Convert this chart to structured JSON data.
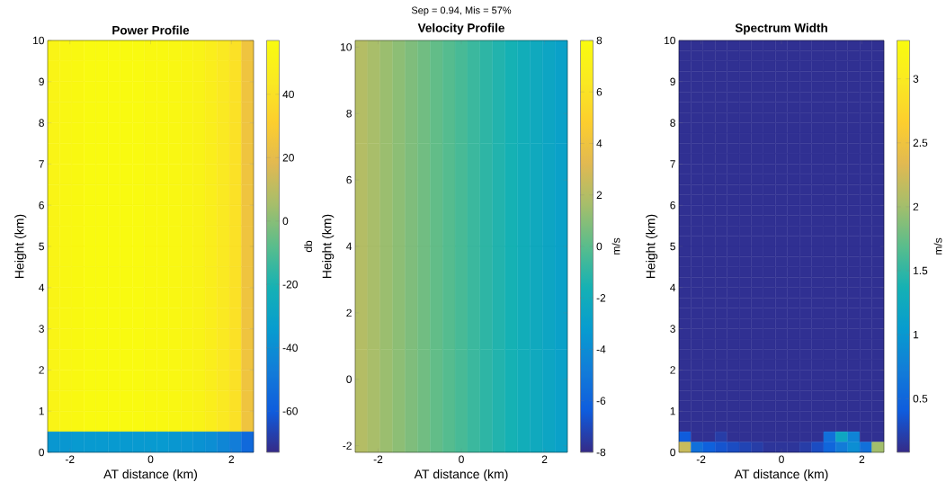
{
  "chart_data": [
    {
      "type": "heatmap",
      "title": "Power Profile",
      "xlabel": "AT distance (km)",
      "ylabel": "Height (km)",
      "clabel": "db",
      "x": [
        -2.4,
        -2.1,
        -1.8,
        -1.5,
        -1.2,
        -0.9,
        -0.6,
        -0.3,
        0,
        0.3,
        0.6,
        0.9,
        1.2,
        1.5,
        1.8,
        2.1,
        2.4
      ],
      "y": [
        9.75,
        9.25,
        8.75,
        8.25,
        7.75,
        7.25,
        6.75,
        6.25,
        5.75,
        5.25,
        4.75,
        4.25,
        3.75,
        3.25,
        2.75,
        2.25,
        1.75,
        1.25,
        0.75,
        0.25
      ],
      "cells": [
        [
          52,
          54,
          55,
          56,
          56,
          56,
          56,
          56,
          55,
          55,
          54,
          53,
          51,
          48,
          44,
          40,
          25
        ],
        [
          52,
          54,
          55,
          56,
          56,
          56,
          56,
          56,
          55,
          55,
          54,
          53,
          51,
          48,
          44,
          40,
          25
        ],
        [
          52,
          54,
          55,
          56,
          56,
          56,
          56,
          56,
          55,
          55,
          54,
          53,
          51,
          48,
          44,
          40,
          25
        ],
        [
          52,
          54,
          55,
          56,
          56,
          56,
          56,
          56,
          55,
          55,
          54,
          53,
          51,
          48,
          44,
          40,
          25
        ],
        [
          52,
          54,
          55,
          56,
          56,
          56,
          56,
          56,
          55,
          55,
          54,
          53,
          51,
          48,
          44,
          40,
          25
        ],
        [
          52,
          54,
          55,
          56,
          56,
          56,
          56,
          56,
          55,
          55,
          54,
          53,
          51,
          48,
          44,
          40,
          25
        ],
        [
          52,
          54,
          55,
          56,
          56,
          56,
          56,
          56,
          55,
          55,
          54,
          53,
          51,
          48,
          44,
          40,
          25
        ],
        [
          52,
          54,
          55,
          56,
          56,
          56,
          56,
          56,
          55,
          55,
          54,
          53,
          51,
          48,
          44,
          40,
          25
        ],
        [
          52,
          54,
          55,
          56,
          56,
          56,
          56,
          56,
          55,
          55,
          54,
          53,
          51,
          48,
          44,
          40,
          25
        ],
        [
          52,
          54,
          55,
          56,
          56,
          56,
          56,
          56,
          55,
          55,
          54,
          53,
          51,
          48,
          44,
          40,
          25
        ],
        [
          52,
          54,
          55,
          56,
          56,
          56,
          56,
          56,
          55,
          55,
          54,
          53,
          51,
          48,
          44,
          40,
          25
        ],
        [
          52,
          54,
          55,
          56,
          56,
          56,
          56,
          56,
          55,
          55,
          54,
          53,
          51,
          48,
          44,
          40,
          25
        ],
        [
          52,
          54,
          55,
          56,
          56,
          56,
          56,
          56,
          55,
          55,
          54,
          53,
          51,
          48,
          44,
          40,
          25
        ],
        [
          52,
          54,
          55,
          56,
          56,
          56,
          56,
          56,
          55,
          55,
          54,
          53,
          51,
          48,
          44,
          40,
          25
        ],
        [
          52,
          54,
          55,
          56,
          56,
          56,
          56,
          56,
          55,
          55,
          54,
          53,
          51,
          48,
          44,
          40,
          25
        ],
        [
          52,
          54,
          55,
          56,
          56,
          56,
          56,
          56,
          55,
          55,
          54,
          53,
          51,
          48,
          44,
          40,
          25
        ],
        [
          52,
          54,
          55,
          56,
          56,
          56,
          56,
          56,
          55,
          55,
          54,
          53,
          51,
          48,
          44,
          40,
          25
        ],
        [
          52,
          54,
          55,
          56,
          56,
          56,
          56,
          56,
          55,
          55,
          54,
          53,
          51,
          48,
          44,
          40,
          25
        ],
        [
          52,
          54,
          55,
          56,
          56,
          56,
          56,
          56,
          55,
          55,
          54,
          53,
          51,
          48,
          44,
          40,
          25
        ],
        [
          -36,
          -36,
          -35,
          -35,
          -35,
          -35,
          -35,
          -35,
          -35,
          -35,
          -36,
          -37,
          -38,
          -40,
          -43,
          -47,
          -55
        ]
      ],
      "xlim": [
        -2.55,
        2.55
      ],
      "ylim": [
        0,
        10
      ],
      "xticks": [
        -2,
        0,
        2
      ],
      "yticks": [
        0,
        1,
        2,
        3,
        4,
        5,
        6,
        7,
        8,
        9,
        10
      ],
      "clim": [
        -73,
        57
      ],
      "cticks": [
        -60,
        -40,
        -20,
        0,
        20,
        40
      ]
    },
    {
      "type": "heatmap",
      "title": "Velocity Profile",
      "xlabel": "AT distance (km)",
      "ylabel": "Height (km)",
      "clabel": "m/s",
      "annotations": [
        "Sep = 0.94, Mis = 57%"
      ],
      "x": [
        -2.4,
        -2.1,
        -1.8,
        -1.5,
        -1.2,
        -0.9,
        -0.6,
        -0.3,
        0,
        0.3,
        0.6,
        0.9,
        1.2,
        1.5,
        1.8,
        2.1,
        2.4
      ],
      "y": [
        8.65,
        5.55,
        2.45,
        -0.65
      ],
      "cells": [
        [
          2.0,
          1.7,
          1.4,
          1.1,
          0.8,
          0.5,
          0.2,
          -0.1,
          -0.4,
          -0.7,
          -1.0,
          -1.3,
          -1.6,
          -1.9,
          -2.2,
          -2.5,
          -2.8
        ],
        [
          2.0,
          1.7,
          1.4,
          1.1,
          0.8,
          0.5,
          0.2,
          -0.1,
          -0.4,
          -0.7,
          -1.0,
          -1.3,
          -1.6,
          -1.9,
          -2.2,
          -2.5,
          -2.8
        ],
        [
          2.0,
          1.7,
          1.4,
          1.1,
          0.8,
          0.5,
          0.2,
          -0.1,
          -0.4,
          -0.7,
          -1.0,
          -1.3,
          -1.6,
          -1.9,
          -2.2,
          -2.5,
          -2.8
        ],
        [
          2.0,
          1.7,
          1.4,
          1.1,
          0.8,
          0.5,
          0.2,
          -0.1,
          -0.4,
          -0.7,
          -1.0,
          -1.3,
          -1.6,
          -1.9,
          -2.2,
          -2.5,
          -2.8
        ]
      ],
      "xlim": [
        -2.55,
        2.55
      ],
      "ylim": [
        -2.2,
        10.2
      ],
      "xticks": [
        -2,
        0,
        2
      ],
      "yticks": [
        -2,
        0,
        2,
        4,
        6,
        8,
        10
      ],
      "clim": [
        -8,
        8
      ],
      "cticks": [
        -8,
        -6,
        -4,
        -2,
        0,
        2,
        4,
        6,
        8
      ]
    },
    {
      "type": "heatmap",
      "title": "Spectrum Width",
      "xlabel": "AT distance (km)",
      "ylabel": "Height (km)",
      "clabel": "m/s",
      "x": [
        -2.4,
        -2.1,
        -1.8,
        -1.5,
        -1.2,
        -0.9,
        -0.6,
        -0.3,
        0,
        0.3,
        0.6,
        0.9,
        1.2,
        1.5,
        1.8,
        2.1,
        2.4
      ],
      "y": [
        9.875,
        9.625,
        9.375,
        9.125,
        8.875,
        8.625,
        8.375,
        8.125,
        7.875,
        7.625,
        7.375,
        7.125,
        6.875,
        6.625,
        6.375,
        6.125,
        5.875,
        5.625,
        5.375,
        5.125,
        4.875,
        4.625,
        4.375,
        4.125,
        3.875,
        3.625,
        3.375,
        3.125,
        2.875,
        2.625,
        2.375,
        2.125,
        1.875,
        1.625,
        1.375,
        1.125,
        0.875,
        0.625,
        0.375,
        0.125
      ],
      "cells": [
        [
          0.12,
          0.12,
          0.12,
          0.12,
          0.12,
          0.12,
          0.12,
          0.12,
          0.12,
          0.12,
          0.12,
          0.12,
          0.12,
          0.12,
          0.12,
          0.12,
          0.12
        ],
        [
          0.12,
          0.12,
          0.12,
          0.12,
          0.12,
          0.12,
          0.12,
          0.12,
          0.12,
          0.12,
          0.12,
          0.12,
          0.12,
          0.12,
          0.12,
          0.12,
          0.12
        ],
        [
          0.12,
          0.12,
          0.12,
          0.12,
          0.12,
          0.12,
          0.12,
          0.12,
          0.12,
          0.12,
          0.12,
          0.12,
          0.12,
          0.12,
          0.12,
          0.12,
          0.12
        ],
        [
          0.12,
          0.12,
          0.12,
          0.12,
          0.12,
          0.12,
          0.12,
          0.12,
          0.12,
          0.12,
          0.12,
          0.12,
          0.12,
          0.12,
          0.12,
          0.12,
          0.12
        ],
        [
          0.12,
          0.12,
          0.12,
          0.12,
          0.12,
          0.12,
          0.12,
          0.12,
          0.12,
          0.12,
          0.12,
          0.12,
          0.12,
          0.12,
          0.12,
          0.12,
          0.12
        ],
        [
          0.12,
          0.12,
          0.12,
          0.12,
          0.12,
          0.12,
          0.12,
          0.12,
          0.12,
          0.12,
          0.12,
          0.12,
          0.12,
          0.12,
          0.12,
          0.12,
          0.12
        ],
        [
          0.12,
          0.12,
          0.12,
          0.12,
          0.12,
          0.12,
          0.12,
          0.12,
          0.12,
          0.12,
          0.12,
          0.12,
          0.12,
          0.12,
          0.12,
          0.12,
          0.12
        ],
        [
          0.12,
          0.12,
          0.12,
          0.12,
          0.12,
          0.12,
          0.12,
          0.12,
          0.12,
          0.12,
          0.12,
          0.12,
          0.12,
          0.12,
          0.12,
          0.12,
          0.12
        ],
        [
          0.12,
          0.12,
          0.12,
          0.12,
          0.12,
          0.12,
          0.12,
          0.12,
          0.12,
          0.12,
          0.12,
          0.12,
          0.12,
          0.12,
          0.12,
          0.12,
          0.12
        ],
        [
          0.12,
          0.12,
          0.12,
          0.12,
          0.12,
          0.12,
          0.12,
          0.12,
          0.12,
          0.12,
          0.12,
          0.12,
          0.12,
          0.12,
          0.12,
          0.12,
          0.12
        ],
        [
          0.12,
          0.12,
          0.12,
          0.12,
          0.12,
          0.12,
          0.12,
          0.12,
          0.12,
          0.12,
          0.12,
          0.12,
          0.12,
          0.12,
          0.12,
          0.12,
          0.12
        ],
        [
          0.12,
          0.12,
          0.12,
          0.12,
          0.12,
          0.12,
          0.12,
          0.12,
          0.12,
          0.12,
          0.12,
          0.12,
          0.12,
          0.12,
          0.12,
          0.12,
          0.12
        ],
        [
          0.12,
          0.12,
          0.12,
          0.12,
          0.12,
          0.12,
          0.12,
          0.12,
          0.12,
          0.12,
          0.12,
          0.12,
          0.12,
          0.12,
          0.12,
          0.12,
          0.12
        ],
        [
          0.12,
          0.12,
          0.12,
          0.12,
          0.12,
          0.12,
          0.12,
          0.12,
          0.12,
          0.12,
          0.12,
          0.12,
          0.12,
          0.12,
          0.12,
          0.12,
          0.12
        ],
        [
          0.12,
          0.12,
          0.12,
          0.12,
          0.12,
          0.12,
          0.12,
          0.12,
          0.12,
          0.12,
          0.12,
          0.12,
          0.12,
          0.12,
          0.12,
          0.12,
          0.12
        ],
        [
          0.12,
          0.12,
          0.12,
          0.12,
          0.12,
          0.12,
          0.12,
          0.12,
          0.12,
          0.12,
          0.12,
          0.12,
          0.12,
          0.12,
          0.12,
          0.12,
          0.12
        ],
        [
          0.12,
          0.12,
          0.12,
          0.12,
          0.12,
          0.12,
          0.12,
          0.12,
          0.12,
          0.12,
          0.12,
          0.12,
          0.12,
          0.12,
          0.12,
          0.12,
          0.12
        ],
        [
          0.12,
          0.12,
          0.12,
          0.12,
          0.12,
          0.12,
          0.12,
          0.12,
          0.12,
          0.12,
          0.12,
          0.12,
          0.12,
          0.12,
          0.12,
          0.12,
          0.12
        ],
        [
          0.12,
          0.12,
          0.12,
          0.12,
          0.12,
          0.12,
          0.12,
          0.12,
          0.12,
          0.12,
          0.12,
          0.12,
          0.12,
          0.12,
          0.12,
          0.12,
          0.12
        ],
        [
          0.12,
          0.12,
          0.12,
          0.12,
          0.12,
          0.12,
          0.12,
          0.12,
          0.12,
          0.12,
          0.12,
          0.12,
          0.12,
          0.12,
          0.12,
          0.12,
          0.12
        ],
        [
          0.12,
          0.12,
          0.12,
          0.12,
          0.12,
          0.12,
          0.12,
          0.12,
          0.12,
          0.12,
          0.12,
          0.12,
          0.12,
          0.12,
          0.12,
          0.12,
          0.12
        ],
        [
          0.12,
          0.12,
          0.12,
          0.12,
          0.12,
          0.12,
          0.12,
          0.12,
          0.12,
          0.12,
          0.12,
          0.12,
          0.12,
          0.12,
          0.12,
          0.12,
          0.12
        ],
        [
          0.12,
          0.12,
          0.12,
          0.12,
          0.12,
          0.12,
          0.12,
          0.12,
          0.12,
          0.12,
          0.12,
          0.12,
          0.12,
          0.12,
          0.12,
          0.12,
          0.12
        ],
        [
          0.12,
          0.12,
          0.12,
          0.12,
          0.12,
          0.12,
          0.12,
          0.12,
          0.12,
          0.12,
          0.12,
          0.12,
          0.12,
          0.12,
          0.12,
          0.12,
          0.12
        ],
        [
          0.12,
          0.12,
          0.12,
          0.12,
          0.12,
          0.12,
          0.12,
          0.12,
          0.12,
          0.12,
          0.12,
          0.12,
          0.12,
          0.12,
          0.12,
          0.12,
          0.12
        ],
        [
          0.12,
          0.12,
          0.12,
          0.12,
          0.12,
          0.12,
          0.12,
          0.12,
          0.12,
          0.12,
          0.12,
          0.12,
          0.12,
          0.12,
          0.12,
          0.12,
          0.12
        ],
        [
          0.12,
          0.12,
          0.12,
          0.12,
          0.12,
          0.12,
          0.12,
          0.12,
          0.12,
          0.12,
          0.12,
          0.12,
          0.12,
          0.12,
          0.12,
          0.12,
          0.12
        ],
        [
          0.12,
          0.12,
          0.12,
          0.12,
          0.12,
          0.12,
          0.12,
          0.12,
          0.12,
          0.12,
          0.12,
          0.12,
          0.12,
          0.12,
          0.12,
          0.12,
          0.12
        ],
        [
          0.12,
          0.12,
          0.12,
          0.12,
          0.12,
          0.12,
          0.12,
          0.12,
          0.12,
          0.12,
          0.12,
          0.12,
          0.12,
          0.12,
          0.12,
          0.12,
          0.12
        ],
        [
          0.12,
          0.12,
          0.12,
          0.12,
          0.12,
          0.12,
          0.12,
          0.12,
          0.12,
          0.12,
          0.12,
          0.12,
          0.12,
          0.12,
          0.12,
          0.12,
          0.12
        ],
        [
          0.12,
          0.12,
          0.12,
          0.12,
          0.12,
          0.12,
          0.12,
          0.12,
          0.12,
          0.12,
          0.12,
          0.12,
          0.12,
          0.12,
          0.12,
          0.12,
          0.12
        ],
        [
          0.12,
          0.12,
          0.12,
          0.12,
          0.12,
          0.12,
          0.12,
          0.12,
          0.12,
          0.12,
          0.12,
          0.12,
          0.12,
          0.12,
          0.12,
          0.12,
          0.12
        ],
        [
          0.12,
          0.12,
          0.12,
          0.12,
          0.12,
          0.12,
          0.12,
          0.12,
          0.12,
          0.12,
          0.12,
          0.12,
          0.12,
          0.12,
          0.12,
          0.12,
          0.12
        ],
        [
          0.12,
          0.12,
          0.12,
          0.12,
          0.12,
          0.12,
          0.12,
          0.12,
          0.12,
          0.12,
          0.12,
          0.12,
          0.12,
          0.12,
          0.12,
          0.12,
          0.12
        ],
        [
          0.12,
          0.12,
          0.12,
          0.12,
          0.12,
          0.12,
          0.12,
          0.12,
          0.12,
          0.12,
          0.12,
          0.12,
          0.12,
          0.12,
          0.12,
          0.12,
          0.12
        ],
        [
          0.12,
          0.12,
          0.12,
          0.12,
          0.12,
          0.12,
          0.12,
          0.12,
          0.12,
          0.12,
          0.12,
          0.12,
          0.12,
          0.12,
          0.12,
          0.12,
          0.12
        ],
        [
          0.12,
          0.12,
          0.12,
          0.12,
          0.12,
          0.12,
          0.12,
          0.12,
          0.12,
          0.12,
          0.12,
          0.12,
          0.12,
          0.12,
          0.12,
          0.12,
          0.12
        ],
        [
          0.12,
          0.12,
          0.12,
          0.12,
          0.12,
          0.12,
          0.12,
          0.12,
          0.12,
          0.12,
          0.12,
          0.12,
          0.12,
          0.12,
          0.12,
          0.12,
          0.12
        ],
        [
          0.4,
          0.12,
          0.12,
          0.2,
          0.12,
          0.12,
          0.12,
          0.12,
          0.12,
          0.12,
          0.12,
          0.12,
          0.6,
          1.2,
          0.8,
          0.12,
          0.12
        ],
        [
          2.2,
          0.6,
          0.45,
          0.35,
          0.3,
          0.25,
          0.2,
          0.15,
          0.15,
          0.15,
          0.2,
          0.3,
          0.5,
          0.7,
          0.9,
          0.6,
          2.0
        ]
      ],
      "xlim": [
        -2.55,
        2.55
      ],
      "ylim": [
        0,
        10
      ],
      "xticks": [
        -2,
        0,
        2
      ],
      "yticks": [
        0,
        1,
        2,
        3,
        4,
        5,
        6,
        7,
        8,
        9,
        10
      ],
      "clim": [
        0.08,
        3.3
      ],
      "cticks": [
        0.5,
        1,
        1.5,
        2,
        2.5,
        3
      ]
    }
  ]
}
